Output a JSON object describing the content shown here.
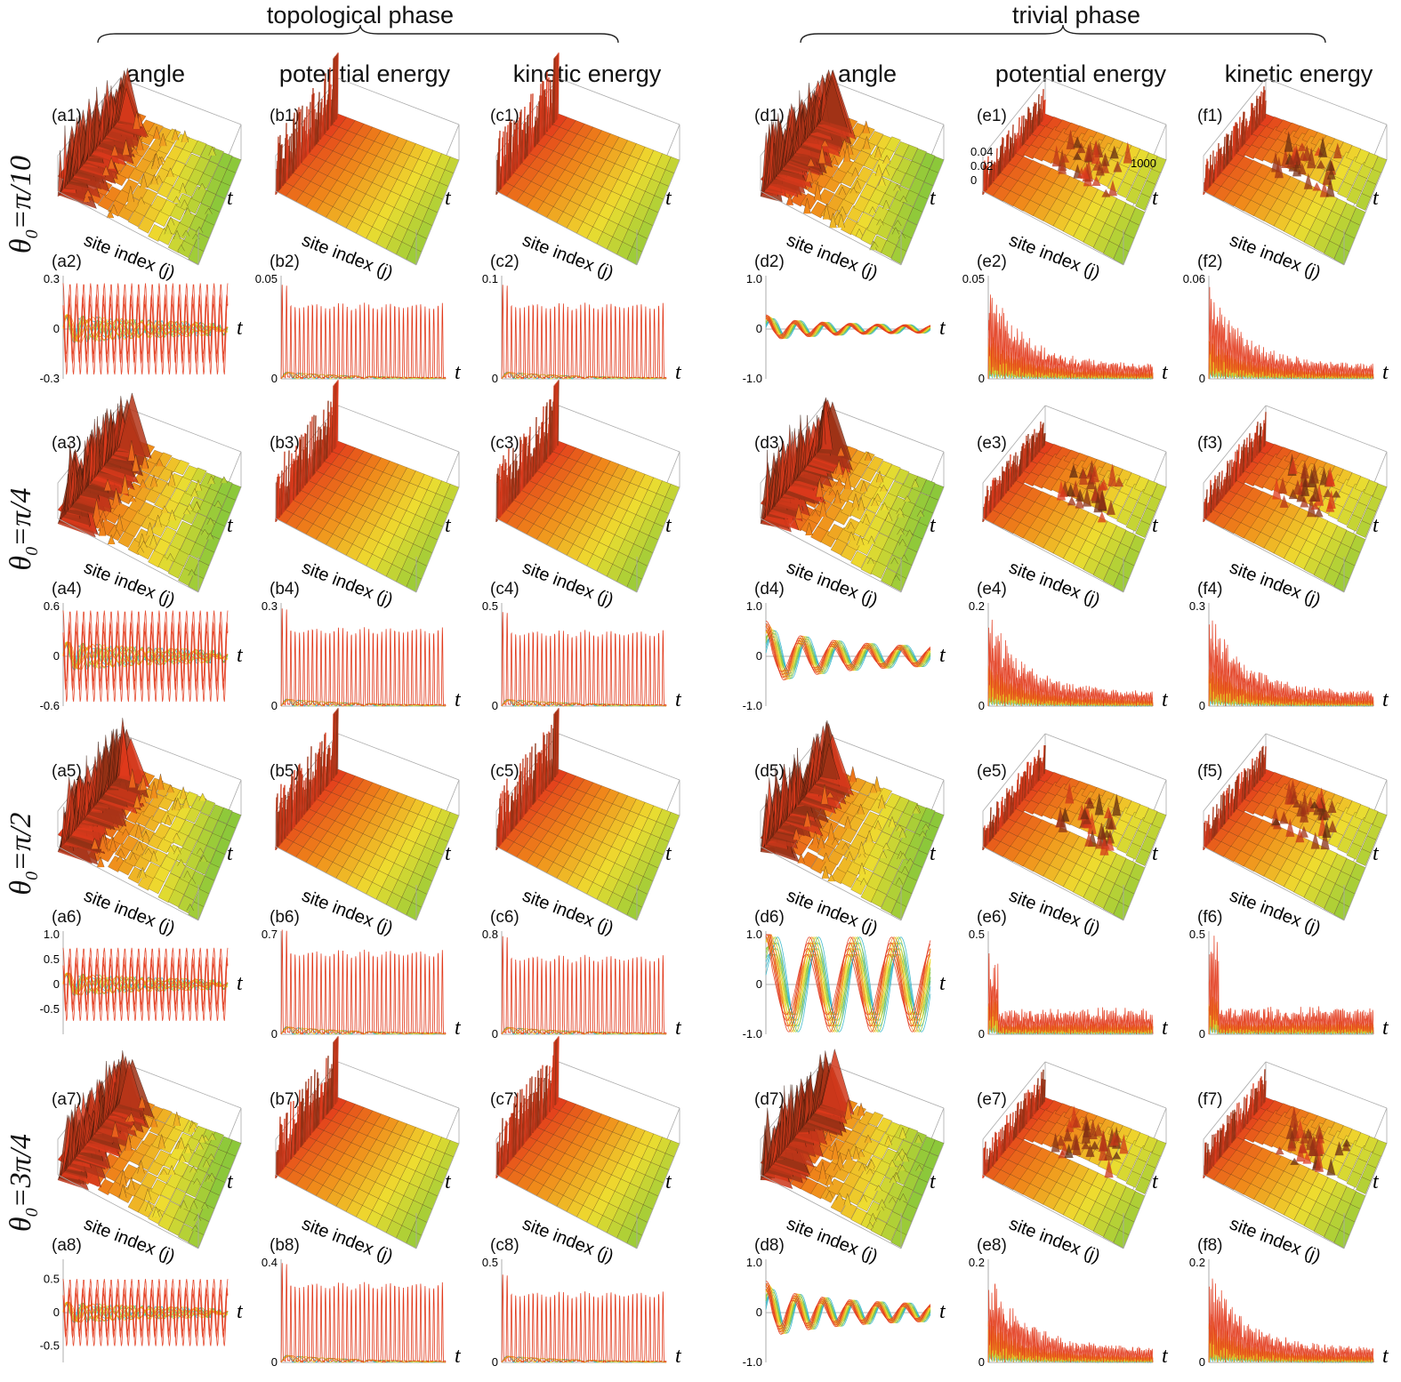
{
  "phases": [
    {
      "label": "topological phase"
    },
    {
      "label": "trivial phase"
    }
  ],
  "columns": [
    {
      "id": "a",
      "label": "angle"
    },
    {
      "id": "b",
      "label": "potential energy"
    },
    {
      "id": "c",
      "label": "kinetic energy"
    },
    {
      "id": "d",
      "label": "angle"
    },
    {
      "id": "e",
      "label": "potential energy"
    },
    {
      "id": "f",
      "label": "kinetic energy"
    }
  ],
  "rows": [
    {
      "theta_symbol": "θ",
      "subscript": "0",
      "value": "=π/10"
    },
    {
      "theta_symbol": "θ",
      "subscript": "0",
      "value": "=π/4"
    },
    {
      "theta_symbol": "θ",
      "subscript": "0",
      "value": "=π/2"
    },
    {
      "theta_symbol": "θ",
      "subscript": "0",
      "value": "=3π/4"
    }
  ],
  "surface_labels": {
    "x": "site index (j)",
    "t": "t"
  },
  "inset_ticks_e1": {
    "z": [
      "0.04",
      "0.02",
      "0"
    ],
    "t": "1000"
  },
  "colors": {
    "red": "#e23a1c",
    "orange": "#f08a1a",
    "yellow": "#eedd30",
    "green": "#8cc83a",
    "cyan": "#30b4c8",
    "dark": "#5a2a10"
  },
  "chart_data": {
    "type": "line",
    "description_x": "t",
    "series_order": [
      "red",
      "orange",
      "yellow",
      "green",
      "cyan"
    ],
    "panels": [
      {
        "id": "a2",
        "kind": "angle-top",
        "yticks": [
          "0.3",
          "0",
          "-0.3"
        ],
        "ylim": [
          -0.3,
          0.3
        ],
        "amp": 0.3
      },
      {
        "id": "b2",
        "kind": "energy-top",
        "yticks": [
          "0.05",
          "0"
        ],
        "ylim": [
          0,
          0.05
        ],
        "peak": 0.045
      },
      {
        "id": "c2",
        "kind": "energy-top",
        "yticks": [
          "0.1",
          "0"
        ],
        "ylim": [
          0,
          0.1
        ],
        "peak": 0.09
      },
      {
        "id": "d2",
        "kind": "angle-triv",
        "yticks": [
          "1.0",
          "0",
          "-1.0"
        ],
        "ylim": [
          -1.0,
          1.0
        ],
        "amp": 0.18
      },
      {
        "id": "e2",
        "kind": "energy-triv",
        "yticks": [
          "0.05",
          "0"
        ],
        "ylim": [
          0,
          0.05
        ],
        "peak": 0.05
      },
      {
        "id": "f2",
        "kind": "energy-triv",
        "yticks": [
          "0.06",
          "0"
        ],
        "ylim": [
          0,
          0.06
        ],
        "peak": 0.06
      },
      {
        "id": "a4",
        "kind": "angle-top",
        "yticks": [
          "0.6",
          "0",
          "-0.6"
        ],
        "ylim": [
          -0.6,
          0.6
        ],
        "amp": 0.6
      },
      {
        "id": "b4",
        "kind": "energy-top",
        "yticks": [
          "0.3",
          "0"
        ],
        "ylim": [
          0,
          0.3
        ],
        "peak": 0.28
      },
      {
        "id": "c4",
        "kind": "energy-top",
        "yticks": [
          "0.5",
          "0"
        ],
        "ylim": [
          0,
          0.5
        ],
        "peak": 0.45
      },
      {
        "id": "d4",
        "kind": "angle-triv",
        "yticks": [
          "1.0",
          "0",
          "-1.0"
        ],
        "ylim": [
          -1.0,
          1.0
        ],
        "amp": 0.45
      },
      {
        "id": "e4",
        "kind": "energy-triv",
        "yticks": [
          "0.2",
          "0"
        ],
        "ylim": [
          0,
          0.2
        ],
        "peak": 0.2
      },
      {
        "id": "f4",
        "kind": "energy-triv",
        "yticks": [
          "0.3",
          "0"
        ],
        "ylim": [
          0,
          0.3
        ],
        "peak": 0.3
      },
      {
        "id": "a6",
        "kind": "angle-top",
        "yticks": [
          "1.0",
          "0.5",
          "0",
          "-0.5"
        ],
        "ylim": [
          -1.0,
          1.0
        ],
        "amp": 0.8
      },
      {
        "id": "b6",
        "kind": "energy-top",
        "yticks": [
          "0.7",
          "0"
        ],
        "ylim": [
          0,
          0.7
        ],
        "peak": 0.7
      },
      {
        "id": "c6",
        "kind": "energy-top",
        "yticks": [
          "0.8",
          "0"
        ],
        "ylim": [
          0,
          0.8
        ],
        "peak": 0.75
      },
      {
        "id": "d6",
        "kind": "angle-triv",
        "yticks": [
          "1.0",
          "0",
          "-1.0"
        ],
        "ylim": [
          -1.0,
          1.0
        ],
        "amp": 0.95
      },
      {
        "id": "e6",
        "kind": "energy-triv",
        "yticks": [
          "0.5",
          "0"
        ],
        "ylim": [
          0,
          0.5
        ],
        "peak": 0.45
      },
      {
        "id": "f6",
        "kind": "energy-triv",
        "yticks": [
          "0.5",
          "0"
        ],
        "ylim": [
          0,
          0.5
        ],
        "peak": 0.5
      },
      {
        "id": "a8",
        "kind": "angle-top",
        "yticks": [
          "0.5",
          "0",
          "-0.5"
        ],
        "ylim": [
          -0.75,
          0.75
        ],
        "amp": 0.55
      },
      {
        "id": "b8",
        "kind": "energy-top",
        "yticks": [
          "0.4",
          "0"
        ],
        "ylim": [
          0,
          0.4
        ],
        "peak": 0.38
      },
      {
        "id": "c8",
        "kind": "energy-top",
        "yticks": [
          "0.5",
          "0"
        ],
        "ylim": [
          0,
          0.5
        ],
        "peak": 0.42
      },
      {
        "id": "d8",
        "kind": "angle-triv",
        "yticks": [
          "1.0",
          "0",
          "-1.0"
        ],
        "ylim": [
          -1.0,
          1.0
        ],
        "amp": 0.4
      },
      {
        "id": "e8",
        "kind": "energy-triv",
        "yticks": [
          "0.2",
          "0"
        ],
        "ylim": [
          0,
          0.2
        ],
        "peak": 0.2
      },
      {
        "id": "f8",
        "kind": "energy-triv",
        "yticks": [
          "0.2",
          "0"
        ],
        "ylim": [
          0,
          0.2
        ],
        "peak": 0.2
      }
    ],
    "surfaces": [
      {
        "id": "a1",
        "kind": "angle",
        "sharp": true
      },
      {
        "id": "b1",
        "kind": "energy",
        "edge": "top"
      },
      {
        "id": "c1",
        "kind": "energy",
        "edge": "top"
      },
      {
        "id": "d1",
        "kind": "angle"
      },
      {
        "id": "e1",
        "kind": "energy",
        "edge": "hump"
      },
      {
        "id": "f1",
        "kind": "energy",
        "edge": "hump"
      },
      {
        "id": "a3",
        "kind": "angle",
        "sharp": true
      },
      {
        "id": "b3",
        "kind": "energy",
        "edge": "top"
      },
      {
        "id": "c3",
        "kind": "energy",
        "edge": "top"
      },
      {
        "id": "d3",
        "kind": "angle"
      },
      {
        "id": "e3",
        "kind": "energy",
        "edge": "hump"
      },
      {
        "id": "f3",
        "kind": "energy",
        "edge": "hump"
      },
      {
        "id": "a5",
        "kind": "angle",
        "sharp": true
      },
      {
        "id": "b5",
        "kind": "energy",
        "edge": "top"
      },
      {
        "id": "c5",
        "kind": "energy",
        "edge": "top"
      },
      {
        "id": "d5",
        "kind": "angle"
      },
      {
        "id": "e5",
        "kind": "energy",
        "edge": "hump"
      },
      {
        "id": "f5",
        "kind": "energy",
        "edge": "hump"
      },
      {
        "id": "a7",
        "kind": "angle",
        "sharp": true
      },
      {
        "id": "b7",
        "kind": "energy",
        "edge": "top"
      },
      {
        "id": "c7",
        "kind": "energy",
        "edge": "top"
      },
      {
        "id": "d7",
        "kind": "angle"
      },
      {
        "id": "e7",
        "kind": "energy",
        "edge": "hump"
      },
      {
        "id": "f7",
        "kind": "energy",
        "edge": "hump"
      }
    ]
  }
}
